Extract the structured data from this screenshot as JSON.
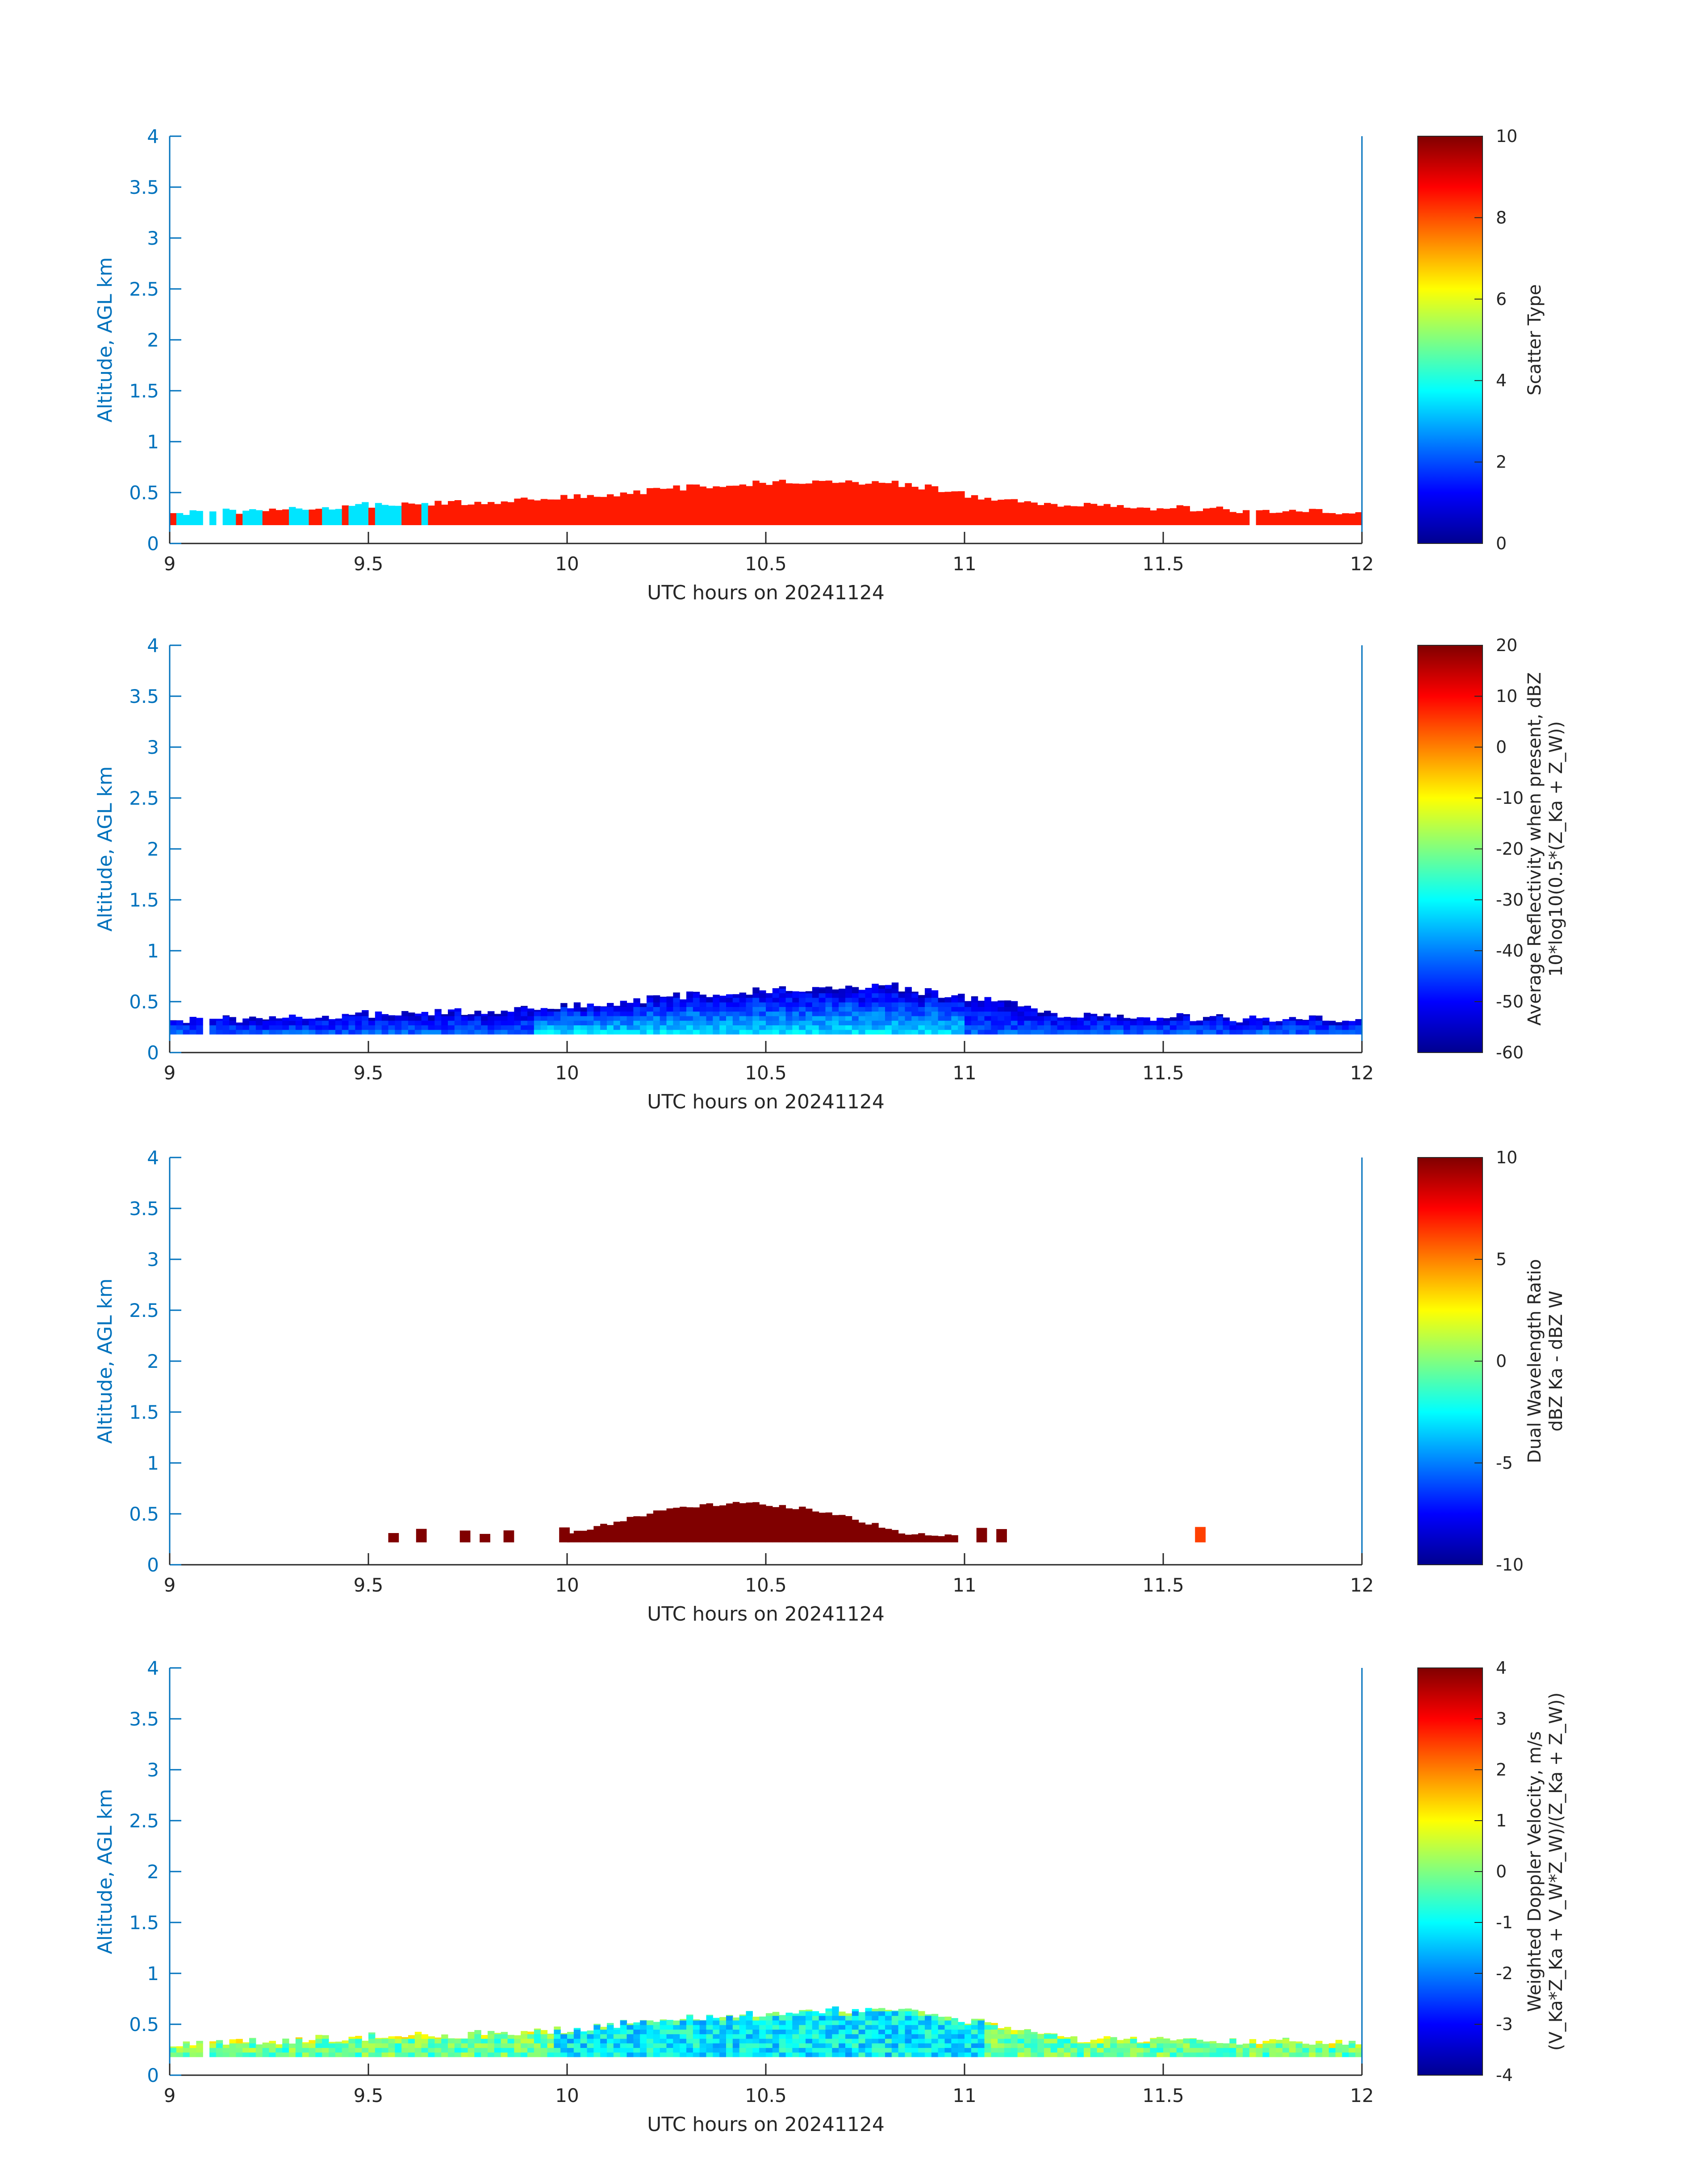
{
  "panels": [
    {
      "id": "scatter-type",
      "ylabel": "Altitude, AGL km",
      "xlabel": "UTC hours on 20241124",
      "cb_label_lines": [
        "Scatter Type"
      ],
      "cb_ticks": [
        "0",
        "2",
        "4",
        "6",
        "8",
        "10"
      ],
      "cb_range": [
        0,
        10
      ]
    },
    {
      "id": "reflectivity",
      "ylabel": "Altitude, AGL km",
      "xlabel": "UTC hours on 20241124",
      "cb_label_lines": [
        "Average Reflectivity when present, dBZ",
        "10*log10(0.5*(Zₖₐ + Zᵂ))"
      ],
      "cb_label_html": [
        "Average Reflectivity when present, dBZ",
        "10*log10(0.5*(Z_Ka + Z_W))"
      ],
      "cb_ticks": [
        "-60",
        "-50",
        "-40",
        "-30",
        "-20",
        "-10",
        "0",
        "10",
        "20"
      ],
      "cb_range": [
        -60,
        20
      ]
    },
    {
      "id": "dwr",
      "ylabel": "Altitude, AGL km",
      "xlabel": "UTC hours on 20241124",
      "cb_label_lines": [
        "Dual Wavelength Ratio",
        "dBZ Ka - dBZ W"
      ],
      "cb_ticks": [
        "-10",
        "-5",
        "0",
        "5",
        "10"
      ],
      "cb_range": [
        -10,
        10
      ]
    },
    {
      "id": "doppler",
      "ylabel": "Altitude, AGL km",
      "xlabel": "UTC hours on 20241124",
      "cb_label_lines": [
        "Weighted Doppler Velocity, m/s",
        "(V_Ka*Z_Ka + V_W*Z_W)/(Z_Ka + Z_W))"
      ],
      "cb_ticks": [
        "-4",
        "-3",
        "-2",
        "-1",
        "0",
        "1",
        "2",
        "3",
        "4"
      ],
      "cb_range": [
        -4,
        4
      ]
    }
  ],
  "colors": {
    "axis_y": "#0072BD",
    "text": "#262626",
    "scatter_fill": "#FF4000",
    "dwr_fill": "#800000"
  },
  "chart_data": [
    {
      "type": "heatmap",
      "title": "",
      "xlabel": "UTC hours on 20241124",
      "ylabel": "Altitude, AGL km",
      "colorbar_label": "Scatter Type",
      "xlim": [
        9,
        12
      ],
      "ylim": [
        0,
        4
      ],
      "xticks": [
        "9",
        "9.5",
        "10",
        "10.5",
        "11",
        "11.5",
        "12"
      ],
      "yticks": [
        "0",
        "0.5",
        "1",
        "1.5",
        "2",
        "2.5",
        "3",
        "3.5",
        "4"
      ],
      "colorbar_range": [
        0,
        10
      ],
      "cloud_top_km": {
        "x": [
          9.0,
          9.25,
          9.5,
          9.75,
          10.0,
          10.2,
          10.4,
          10.6,
          10.7,
          10.85,
          10.95,
          11.05,
          11.25,
          11.5,
          11.75,
          12.0
        ],
        "y": [
          0.3,
          0.33,
          0.38,
          0.4,
          0.45,
          0.52,
          0.58,
          0.61,
          0.61,
          0.58,
          0.52,
          0.42,
          0.38,
          0.35,
          0.32,
          0.3
        ]
      },
      "cloud_base_km": 0.18,
      "dominant_value": 8.5,
      "notes_values": {
        "early_cells_x_range": [
          9.0,
          9.65
        ],
        "early_cells_value": 3.5
      }
    },
    {
      "type": "heatmap",
      "title": "",
      "xlabel": "UTC hours on 20241124",
      "ylabel": "Altitude, AGL km",
      "colorbar_label": "Average Reflectivity when present, dBZ 10*log10(0.5*(Z_Ka + Z_W))",
      "xlim": [
        9,
        12
      ],
      "ylim": [
        0,
        4
      ],
      "colorbar_range": [
        -60,
        20
      ],
      "cloud_top_km": {
        "x": [
          9.0,
          9.25,
          9.5,
          9.75,
          10.0,
          10.2,
          10.4,
          10.6,
          10.8,
          10.95,
          11.1,
          11.25,
          11.5,
          11.75,
          12.0
        ],
        "y": [
          0.32,
          0.34,
          0.38,
          0.4,
          0.45,
          0.53,
          0.59,
          0.63,
          0.66,
          0.56,
          0.48,
          0.36,
          0.35,
          0.33,
          0.32
        ]
      },
      "cloud_base_km": 0.18,
      "value_range_in_cloud_dBZ": [
        -55,
        -35
      ]
    },
    {
      "type": "heatmap",
      "title": "",
      "xlabel": "UTC hours on 20241124",
      "ylabel": "Altitude, AGL km",
      "colorbar_label": "Dual Wavelength Ratio dBZ Ka - dBZ W",
      "xlim": [
        9,
        12
      ],
      "ylim": [
        0,
        4
      ],
      "colorbar_range": [
        -10,
        10
      ],
      "main_block": {
        "x_range": [
          10.0,
          10.98
        ],
        "top_km_peak": 0.6,
        "value": 10
      },
      "isolated_cells_x": [
        9.55,
        9.62,
        9.73,
        9.78,
        9.84,
        9.98,
        11.03,
        11.08,
        11.58
      ]
    },
    {
      "type": "heatmap",
      "title": "",
      "xlabel": "UTC hours on 20241124",
      "ylabel": "Altitude, AGL km",
      "colorbar_label": "Weighted Doppler Velocity, m/s (V_Ka*Z_Ka + V_W*Z_W)/(Z_Ka + Z_W))",
      "xlim": [
        9,
        12
      ],
      "ylim": [
        0,
        4
      ],
      "colorbar_range": [
        -4,
        4
      ],
      "cloud_top_km": {
        "x": [
          9.0,
          9.25,
          9.5,
          9.75,
          10.0,
          10.2,
          10.4,
          10.6,
          10.8,
          10.95,
          11.1,
          11.25,
          11.5,
          11.75,
          12.0
        ],
        "y": [
          0.32,
          0.34,
          0.38,
          0.4,
          0.45,
          0.53,
          0.59,
          0.63,
          0.66,
          0.56,
          0.48,
          0.36,
          0.35,
          0.33,
          0.32
        ]
      },
      "cloud_base_km": 0.18,
      "value_range_in_cloud_ms": [
        -1.5,
        0.5
      ]
    }
  ]
}
